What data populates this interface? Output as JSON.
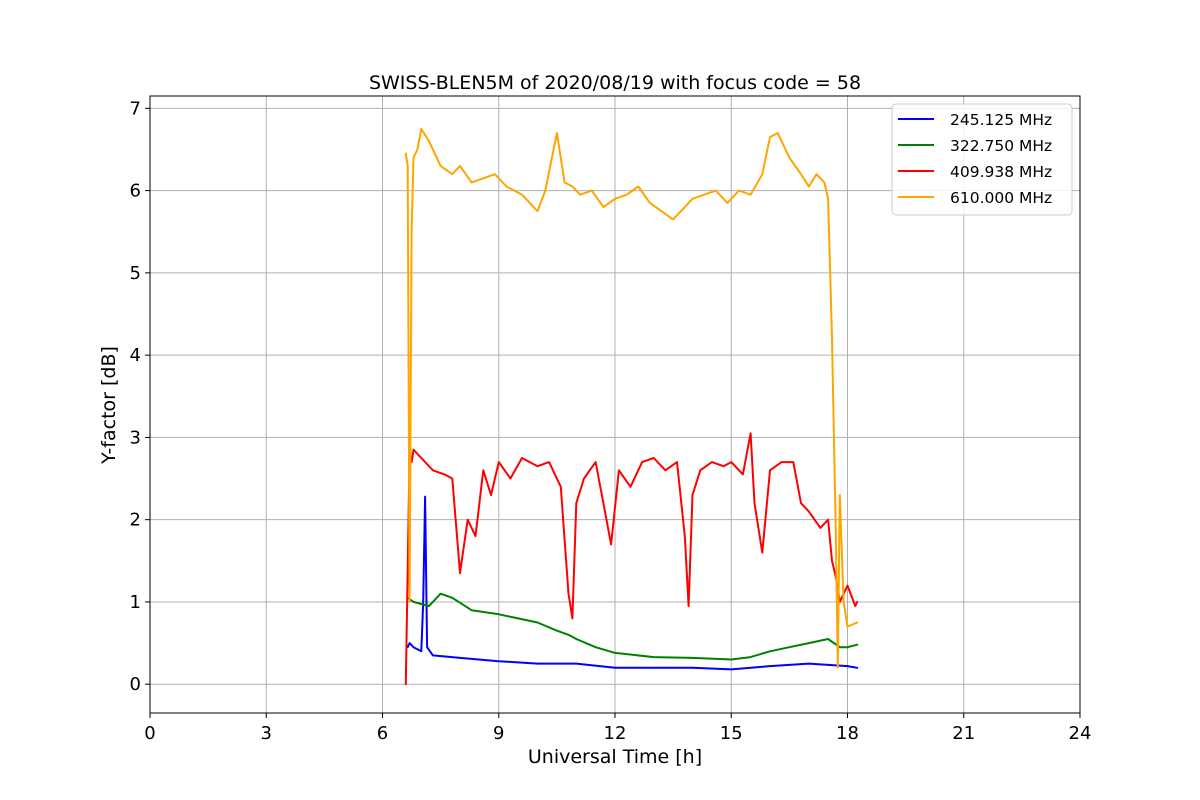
{
  "chart_data": {
    "type": "line",
    "title": "SWISS-BLEN5M of 2020/08/19 with focus code = 58",
    "xlabel": "Universal Time [h]",
    "ylabel": "Y-factor [dB]",
    "xlim": [
      0,
      24
    ],
    "ylim": [
      -0.35,
      7.15
    ],
    "xticks": [
      0,
      3,
      6,
      9,
      12,
      15,
      18,
      21,
      24
    ],
    "yticks": [
      0,
      1,
      2,
      3,
      4,
      5,
      6,
      7
    ],
    "grid": true,
    "legend_position": "top-right",
    "series": [
      {
        "name": "245.125 MHz",
        "color": "#0000ff",
        "x": [
          6.65,
          6.7,
          6.8,
          7.0,
          7.05,
          7.1,
          7.15,
          7.3,
          8.0,
          9.0,
          10.0,
          11.0,
          12.0,
          13.0,
          14.0,
          15.0,
          16.0,
          17.0,
          18.0,
          18.25
        ],
        "y": [
          0.45,
          0.5,
          0.45,
          0.4,
          1.0,
          2.28,
          0.45,
          0.35,
          0.32,
          0.28,
          0.25,
          0.25,
          0.2,
          0.2,
          0.2,
          0.18,
          0.22,
          0.25,
          0.22,
          0.2
        ]
      },
      {
        "name": "322.750 MHz",
        "color": "#008000",
        "x": [
          6.65,
          6.8,
          7.2,
          7.5,
          7.8,
          8.3,
          9.0,
          9.5,
          10.0,
          10.5,
          10.8,
          11.0,
          11.5,
          12.0,
          13.0,
          14.0,
          15.0,
          15.5,
          16.0,
          16.5,
          17.0,
          17.5,
          17.8,
          18.0,
          18.25
        ],
        "y": [
          1.05,
          1.0,
          0.95,
          1.1,
          1.05,
          0.9,
          0.85,
          0.8,
          0.75,
          0.65,
          0.6,
          0.55,
          0.45,
          0.38,
          0.33,
          0.32,
          0.3,
          0.33,
          0.4,
          0.45,
          0.5,
          0.55,
          0.45,
          0.45,
          0.48
        ]
      },
      {
        "name": "409.938 MHz",
        "color": "#ff0000",
        "x": [
          6.6,
          6.7,
          6.75,
          6.8,
          7.0,
          7.3,
          7.6,
          7.8,
          8.0,
          8.2,
          8.4,
          8.6,
          8.8,
          9.0,
          9.3,
          9.6,
          10.0,
          10.3,
          10.6,
          10.8,
          10.9,
          11.0,
          11.2,
          11.5,
          11.7,
          11.9,
          12.1,
          12.4,
          12.7,
          13.0,
          13.3,
          13.6,
          13.8,
          13.9,
          14.0,
          14.2,
          14.5,
          14.8,
          15.0,
          15.3,
          15.5,
          15.6,
          15.8,
          16.0,
          16.3,
          16.6,
          16.8,
          17.0,
          17.3,
          17.5,
          17.6,
          17.7,
          17.8,
          18.0,
          18.2,
          18.25
        ],
        "y": [
          0.0,
          2.8,
          2.7,
          2.85,
          2.75,
          2.6,
          2.55,
          2.5,
          1.35,
          2.0,
          1.8,
          2.6,
          2.3,
          2.7,
          2.5,
          2.75,
          2.65,
          2.7,
          2.4,
          1.1,
          0.8,
          2.2,
          2.5,
          2.7,
          2.2,
          1.7,
          2.6,
          2.4,
          2.7,
          2.75,
          2.6,
          2.7,
          1.8,
          0.95,
          2.3,
          2.6,
          2.7,
          2.65,
          2.7,
          2.55,
          3.05,
          2.2,
          1.6,
          2.6,
          2.7,
          2.7,
          2.2,
          2.1,
          1.9,
          2.0,
          1.5,
          1.3,
          1.0,
          1.2,
          0.95,
          1.0
        ]
      },
      {
        "name": "610.000 MHz",
        "color": "#ffa500",
        "x": [
          6.6,
          6.65,
          6.7,
          6.75,
          6.8,
          6.9,
          7.0,
          7.2,
          7.5,
          7.8,
          8.0,
          8.3,
          8.6,
          8.9,
          9.2,
          9.6,
          10.0,
          10.2,
          10.5,
          10.7,
          10.9,
          11.1,
          11.4,
          11.7,
          12.0,
          12.3,
          12.6,
          12.9,
          13.2,
          13.5,
          13.8,
          14.0,
          14.3,
          14.6,
          14.9,
          15.2,
          15.5,
          15.8,
          16.0,
          16.2,
          16.5,
          16.8,
          17.0,
          17.2,
          17.4,
          17.5,
          17.6,
          17.7,
          17.75,
          17.8,
          17.9,
          18.0,
          18.25
        ],
        "y": [
          6.45,
          6.3,
          1.0,
          5.5,
          6.4,
          6.5,
          6.75,
          6.6,
          6.3,
          6.2,
          6.3,
          6.1,
          6.15,
          6.2,
          6.05,
          5.95,
          5.75,
          6.0,
          6.7,
          6.1,
          6.05,
          5.95,
          6.0,
          5.8,
          5.9,
          5.95,
          6.05,
          5.85,
          5.75,
          5.65,
          5.8,
          5.9,
          5.95,
          6.0,
          5.85,
          6.0,
          5.95,
          6.2,
          6.65,
          6.7,
          6.4,
          6.2,
          6.05,
          6.2,
          6.1,
          5.9,
          4.2,
          1.8,
          0.2,
          2.3,
          1.0,
          0.7,
          0.75
        ]
      }
    ]
  }
}
